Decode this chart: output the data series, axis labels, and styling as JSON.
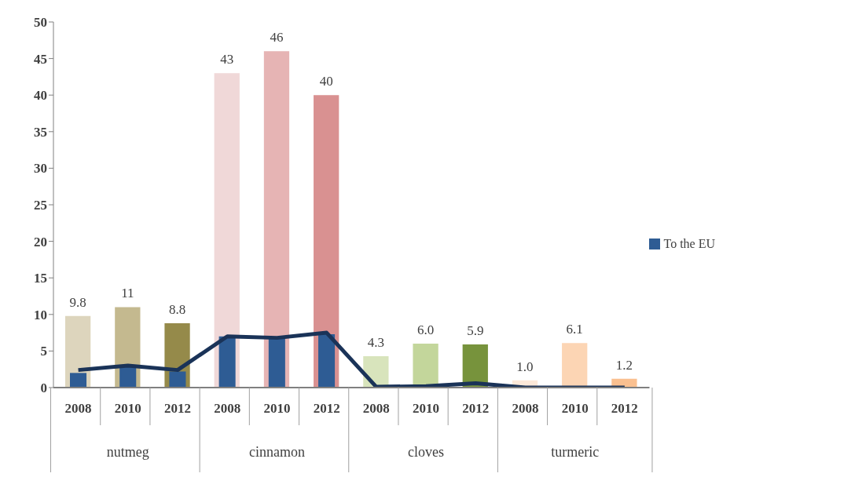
{
  "chart_data": {
    "type": "bar",
    "categories": [
      "2008",
      "2010",
      "2012",
      "2008",
      "2010",
      "2012",
      "2008",
      "2010",
      "2012",
      "2008",
      "2010",
      "2012"
    ],
    "annotations": [
      "nutmeg",
      "cinnamon",
      "cloves",
      "turmeric"
    ],
    "series": [
      {
        "colors": [
          "#ddd5bd",
          "#c4b98f",
          "#958a4a",
          "#f0d8d8",
          "#e6b4b4",
          "#d99191",
          "#d8e4bc",
          "#c3d69b",
          "#77933c",
          "#fde9d9",
          "#fcd5b4",
          "#fac090"
        ],
        "values": [
          9.8,
          11,
          8.8,
          43,
          46,
          40,
          4.3,
          6.0,
          5.9,
          1.0,
          6.1,
          1.2
        ],
        "value_labels": [
          "9.8",
          "11",
          "8.8",
          "43",
          "46",
          "40",
          "4.3",
          "6.0",
          "5.9",
          "1.0",
          "6.1",
          "1.2"
        ]
      },
      {
        "name": "To the EU",
        "color": "#2e5c94",
        "values": [
          2.0,
          3.0,
          2.2,
          7.0,
          6.8,
          7.3,
          null,
          null,
          null,
          null,
          null,
          null
        ]
      },
      {
        "type": "line",
        "color": "#1a3358",
        "values": [
          2.4,
          3.0,
          2.4,
          7.0,
          6.8,
          7.5,
          0.1,
          0.2,
          0.6,
          0,
          0,
          0
        ]
      }
    ],
    "ylim": [
      0,
      50
    ],
    "yticks": [
      0,
      5,
      10,
      15,
      20,
      25,
      30,
      35,
      40,
      45,
      50
    ],
    "grid": false,
    "legend": "right",
    "marker": "none"
  }
}
